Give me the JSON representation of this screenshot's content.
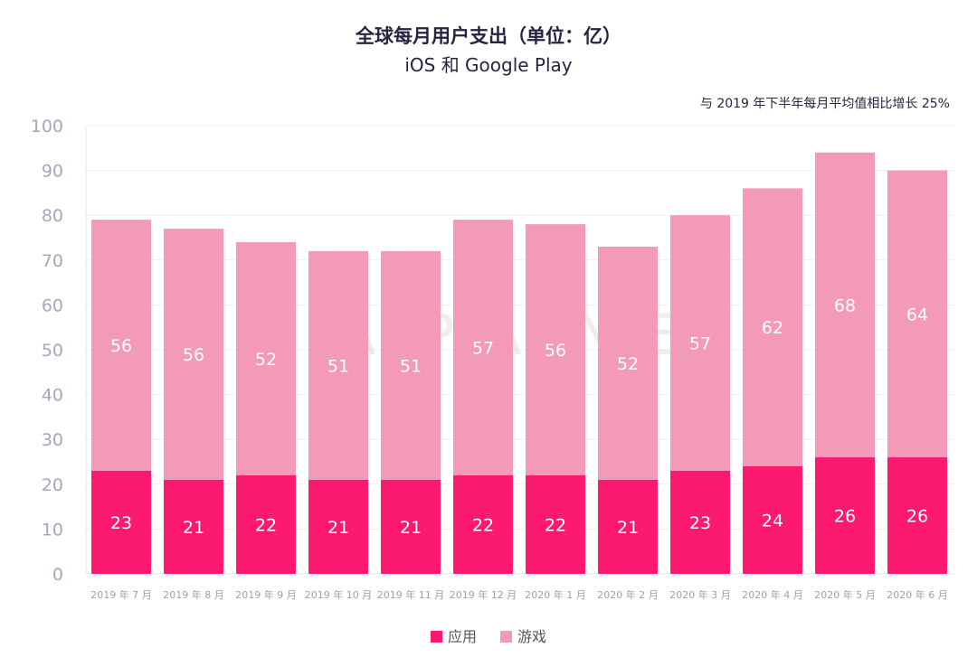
{
  "chart_data": {
    "type": "bar",
    "stacked": true,
    "title": "全球每月用户支出（单位：亿）",
    "subtitle": "iOS 和 Google Play",
    "annotation": "与 2019 年下半年每月平均值相比增长 25%",
    "categories": [
      "2019 年 7 月",
      "2019 年 8 月",
      "2019 年 9 月",
      "2019 年 10 月",
      "2019 年 11 月",
      "2019 年 12 月",
      "2020 年 1 月",
      "2020 年 2 月",
      "2020 年 3 月",
      "2020 年 4 月",
      "2020 年 5 月",
      "2020 年 6 月"
    ],
    "series": [
      {
        "name": "应用",
        "color": "#FC1A70",
        "values": [
          23,
          21,
          22,
          21,
          21,
          22,
          22,
          21,
          23,
          24,
          26,
          26
        ]
      },
      {
        "name": "游戏",
        "color": "#F29AB7",
        "values": [
          56,
          56,
          52,
          51,
          51,
          57,
          56,
          52,
          57,
          62,
          68,
          64
        ]
      }
    ],
    "ylim": [
      0,
      100
    ],
    "yticks": [
      0,
      10,
      20,
      30,
      40,
      50,
      60,
      70,
      80,
      90,
      100
    ],
    "grid": true,
    "legend": "bottom",
    "watermark": "APP ANNIE"
  }
}
